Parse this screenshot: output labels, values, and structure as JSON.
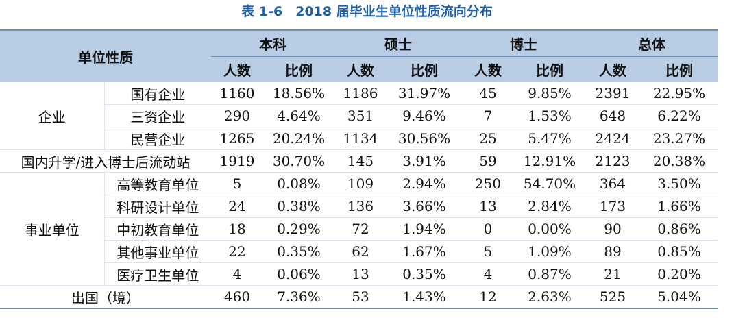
{
  "title": "表 1-6　2018 届毕业生单位性质流向分布",
  "header": {
    "corner": "单位性质",
    "groups": [
      "本科",
      "硕士",
      "博士",
      "总体"
    ],
    "sub": [
      "人数",
      "比例"
    ]
  },
  "rows": [
    {
      "group": "企业",
      "label": "国有企业",
      "values": [
        "1160",
        "18.56%",
        "1186",
        "31.97%",
        "45",
        "9.85%",
        "2391",
        "22.95%"
      ]
    },
    {
      "group": "企业",
      "label": "三资企业",
      "values": [
        "290",
        "4.64%",
        "351",
        "9.46%",
        "7",
        "1.53%",
        "648",
        "6.22%"
      ]
    },
    {
      "group": "企业",
      "label": "民营企业",
      "values": [
        "1265",
        "20.24%",
        "1134",
        "30.56%",
        "25",
        "5.47%",
        "2424",
        "23.27%"
      ]
    },
    {
      "group": "",
      "label": "国内升学/进入博士后流动站",
      "values": [
        "1919",
        "30.70%",
        "145",
        "3.91%",
        "59",
        "12.91%",
        "2123",
        "20.38%"
      ]
    },
    {
      "group": "事业单位",
      "label": "高等教育单位",
      "values": [
        "5",
        "0.08%",
        "109",
        "2.94%",
        "250",
        "54.70%",
        "364",
        "3.50%"
      ]
    },
    {
      "group": "事业单位",
      "label": "科研设计单位",
      "values": [
        "24",
        "0.38%",
        "136",
        "3.66%",
        "13",
        "2.84%",
        "173",
        "1.66%"
      ]
    },
    {
      "group": "事业单位",
      "label": "中初教育单位",
      "values": [
        "18",
        "0.29%",
        "72",
        "1.94%",
        "0",
        "0.00%",
        "90",
        "0.86%"
      ]
    },
    {
      "group": "事业单位",
      "label": "其他事业单位",
      "values": [
        "22",
        "0.35%",
        "62",
        "1.67%",
        "5",
        "1.09%",
        "89",
        "0.85%"
      ]
    },
    {
      "group": "事业单位",
      "label": "医疗卫生单位",
      "values": [
        "4",
        "0.06%",
        "13",
        "0.35%",
        "4",
        "0.87%",
        "21",
        "0.20%"
      ]
    },
    {
      "group": "",
      "label": "出国（境）",
      "values": [
        "460",
        "7.36%",
        "53",
        "1.43%",
        "12",
        "2.63%",
        "525",
        "5.04%"
      ]
    }
  ]
}
